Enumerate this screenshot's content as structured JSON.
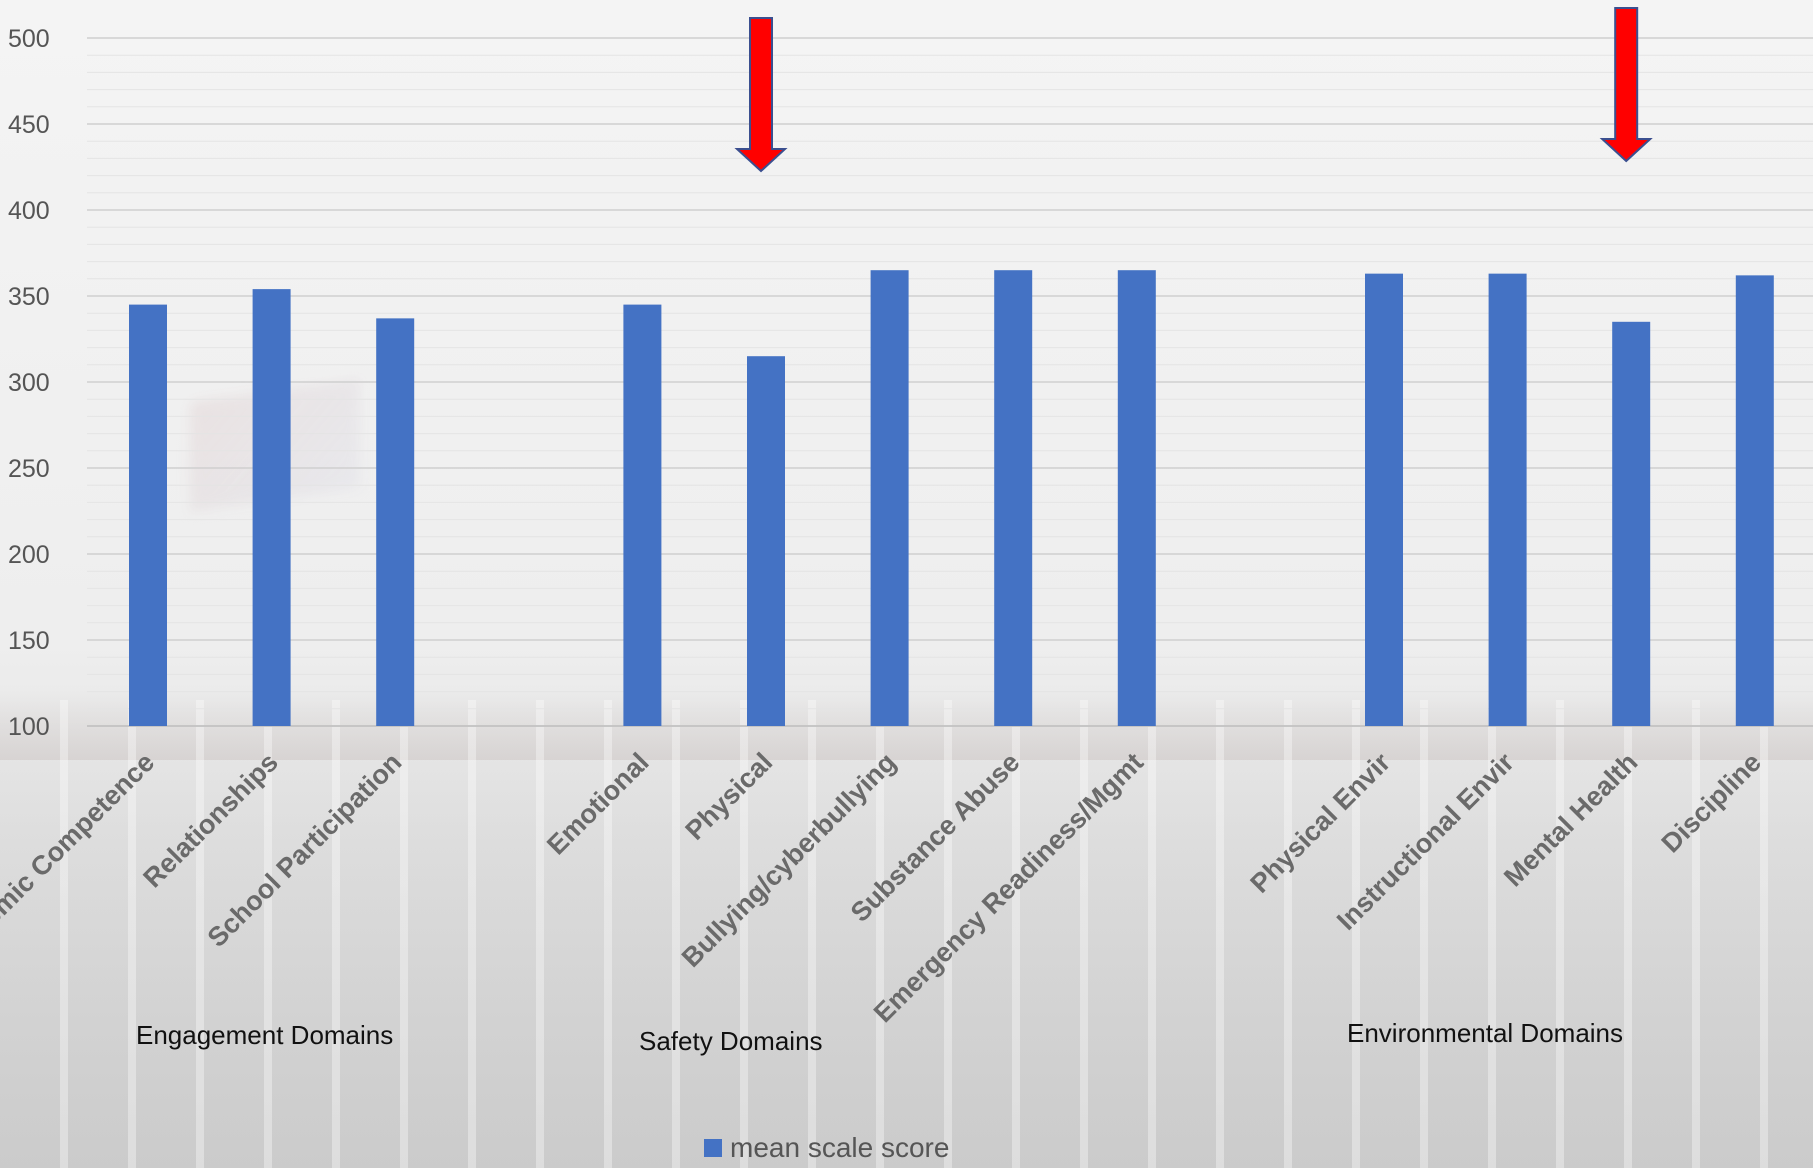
{
  "chart_data": {
    "type": "bar",
    "categories": [
      "Academic Competence",
      "Relationships",
      "School Participation",
      "",
      "Emotional",
      "Physical",
      "Bullying/cyberbullying",
      "Substance Abuse",
      "Emergency Readiness/Mgmt",
      "",
      "Physical Envir",
      "Instructional Envir",
      "Mental Health",
      "Discipline"
    ],
    "series": [
      {
        "name": "mean scale score",
        "values": [
          345,
          354,
          337,
          null,
          345,
          315,
          365,
          365,
          365,
          null,
          363,
          363,
          335,
          362
        ]
      }
    ],
    "ylim": [
      100,
      500
    ],
    "yticks": [
      100,
      150,
      200,
      250,
      300,
      350,
      400,
      450,
      500
    ],
    "ylabel": "",
    "xlabel": "",
    "title": "",
    "grid": true,
    "legend_position": "bottom",
    "bar_color": "#4472c4",
    "highlight_arrows": [
      "Physical",
      "Mental Health"
    ],
    "arrow_color": "#ff0000",
    "groups": [
      {
        "label": "Engagement Domains"
      },
      {
        "label": "Safety Domains"
      },
      {
        "label": "Environmental Domains"
      }
    ]
  },
  "legend": {
    "label": "mean scale score"
  }
}
